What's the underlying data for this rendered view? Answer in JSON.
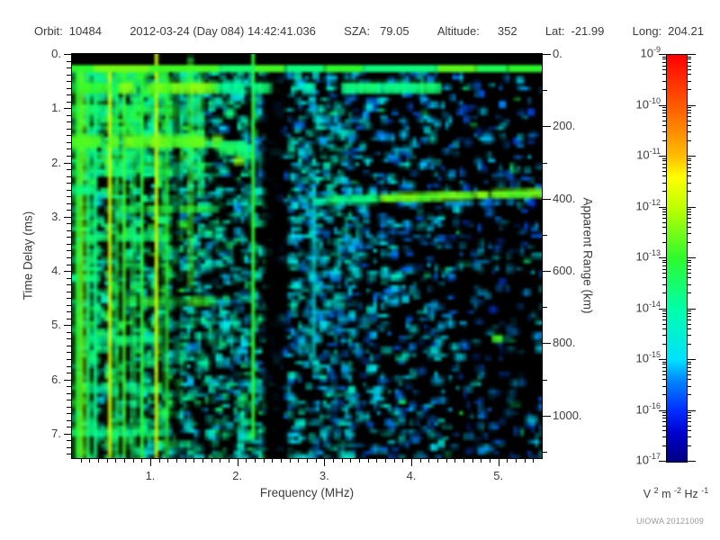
{
  "header": {
    "items": [
      {
        "label": "Orbit:",
        "value": "10484"
      },
      {
        "label": "",
        "value": "2012-03-24 (Day 084) 14:42:41.036"
      },
      {
        "label": "SZA:",
        "value": "79.05"
      },
      {
        "label": "Altitude:",
        "value": "352"
      },
      {
        "label": "Lat:",
        "value": "-21.99"
      },
      {
        "label": "Long:",
        "value": "204.21"
      }
    ]
  },
  "axes": {
    "x": {
      "title": "Frequency (MHz)",
      "tick_labels": [
        "1.",
        "2.",
        "3.",
        "4.",
        "5."
      ],
      "tick_values": [
        1,
        2,
        3,
        4,
        5
      ],
      "min": 0.1,
      "max": 5.5,
      "minor_step": 0.1
    },
    "y_left": {
      "title": "Time Delay (ms)",
      "tick_labels": [
        "0.",
        "1.",
        "2.",
        "3.",
        "4.",
        "5.",
        "6.",
        "7."
      ],
      "tick_values": [
        0,
        1,
        2,
        3,
        4,
        5,
        6,
        7
      ],
      "min": 0,
      "max": 7.45,
      "minor_step": 0.125
    },
    "y_right": {
      "title": "Apparent Range (km)",
      "tick_labels": [
        "0.",
        "200.",
        "400.",
        "600.",
        "800.",
        "1000."
      ],
      "tick_values": [
        0,
        200,
        400,
        600,
        800,
        1000
      ],
      "km_per_ms": 150,
      "minor_step": 100
    }
  },
  "colorbar": {
    "base": "10",
    "exponents": [
      "-9",
      "-10",
      "-11",
      "-12",
      "-13",
      "-14",
      "-15",
      "-16",
      "-17"
    ],
    "max_exp": -9,
    "min_exp": -17,
    "unit_parts": [
      {
        "b": "V",
        "e": "2"
      },
      {
        "b": "m",
        "e": "-2"
      },
      {
        "b": "Hz",
        "e": "-1"
      }
    ]
  },
  "footer": {
    "credit": "UIOWA 20121009"
  },
  "chart_data": {
    "type": "heatmap",
    "subtype": "radar-sounder-ionogram-spectrogram",
    "title": "",
    "xlabel": "Frequency (MHz)",
    "ylabel_left": "Time Delay (ms)",
    "ylabel_right": "Apparent Range (km)",
    "f_range": [
      0.1,
      5.5
    ],
    "t_range": [
      0,
      7.45
    ],
    "intensity_scale": {
      "unit": "V^2 m^-2 Hz^-1",
      "log_min": -17,
      "log_max": -9
    },
    "colormap_stops": [
      {
        "v": 0.0,
        "c": [
          0,
          0,
          130
        ]
      },
      {
        "v": 0.07,
        "c": [
          0,
          0,
          205
        ]
      },
      {
        "v": 0.125,
        "c": [
          0,
          45,
          255
        ]
      },
      {
        "v": 0.2,
        "c": [
          0,
          135,
          255
        ]
      },
      {
        "v": 0.25,
        "c": [
          0,
          225,
          255
        ]
      },
      {
        "v": 0.375,
        "c": [
          0,
          255,
          170
        ]
      },
      {
        "v": 0.5,
        "c": [
          45,
          250,
          45
        ]
      },
      {
        "v": 0.625,
        "c": [
          190,
          255,
          0
        ]
      },
      {
        "v": 0.7,
        "c": [
          255,
          255,
          0
        ]
      },
      {
        "v": 0.75,
        "c": [
          255,
          190,
          0
        ]
      },
      {
        "v": 0.875,
        "c": [
          255,
          90,
          0
        ]
      },
      {
        "v": 1.0,
        "c": [
          255,
          0,
          0
        ]
      }
    ],
    "noise_regions": [
      {
        "f": [
          0.1,
          1.32
        ],
        "t": [
          0.2,
          7.44
        ],
        "n": 1000,
        "v": [
          0.24,
          0.5
        ]
      },
      {
        "f": [
          0.1,
          1.55
        ],
        "t": [
          0.2,
          2.2
        ],
        "n": 550,
        "v": [
          0.3,
          0.55
        ]
      },
      {
        "f": [
          1.32,
          2.3
        ],
        "t": [
          0.2,
          7.44
        ],
        "n": 820,
        "v": [
          0.2,
          0.44
        ]
      },
      {
        "f": [
          2.3,
          2.55
        ],
        "t": [
          0.2,
          7.44
        ],
        "n": 50,
        "v": [
          0.15,
          0.28
        ]
      },
      {
        "f": [
          2.55,
          3.3
        ],
        "t": [
          0.2,
          7.44
        ],
        "n": 660,
        "v": [
          0.18,
          0.36
        ]
      },
      {
        "f": [
          3.3,
          4.4
        ],
        "t": [
          0.2,
          7.44
        ],
        "n": 520,
        "v": [
          0.16,
          0.32
        ]
      },
      {
        "f": [
          4.4,
          5.5
        ],
        "t": [
          0.2,
          7.44
        ],
        "n": 300,
        "v": [
          0.14,
          0.28
        ]
      },
      {
        "f": [
          3.3,
          5.5
        ],
        "t": [
          0.3,
          7.44
        ],
        "n": 30,
        "v": [
          0.38,
          0.48
        ]
      }
    ],
    "texture_bands": [
      {
        "t": [
          0.95,
          1.1
        ],
        "f": [
          0.1,
          1.3
        ],
        "v": 0.45
      },
      {
        "t": [
          2.1,
          2.25
        ],
        "f": [
          0.1,
          1.3
        ],
        "v": 0.4
      },
      {
        "t": [
          2.78,
          2.92
        ],
        "f": [
          0.64,
          1.67
        ],
        "v": 0.48
      },
      {
        "t": [
          3.3,
          3.45
        ],
        "f": [
          0.1,
          1.1
        ],
        "v": 0.42
      },
      {
        "t": [
          4.48,
          4.64
        ],
        "f": [
          0.72,
          1.67
        ],
        "v": 0.5
      },
      {
        "t": [
          5.2,
          5.36
        ],
        "f": [
          0.1,
          1.2
        ],
        "v": 0.4
      },
      {
        "t": [
          6.1,
          6.26
        ],
        "f": [
          0.1,
          1.0
        ],
        "v": 0.38
      },
      {
        "t": [
          6.9,
          7.05
        ],
        "f": [
          0.1,
          1.2
        ],
        "v": 0.4
      }
    ],
    "plasma_stripes": [
      {
        "f": 0.13,
        "w": 2,
        "v": 0.5,
        "t": [
          0.2,
          7.44
        ]
      },
      {
        "f": 0.2,
        "w": 1,
        "v": 0.58,
        "t": [
          0.2,
          7.44
        ]
      },
      {
        "f": 0.27,
        "w": 1,
        "v": 0.45,
        "t": [
          0.2,
          7.44
        ]
      },
      {
        "f": 0.35,
        "w": 1,
        "v": 0.42,
        "t": [
          0.2,
          7.44
        ]
      },
      {
        "f": 0.51,
        "w": 1,
        "v": 0.66,
        "t": [
          0.2,
          7.44
        ]
      },
      {
        "f": 0.58,
        "w": 1,
        "v": 0.48,
        "t": [
          0.2,
          7.44
        ]
      },
      {
        "f": 0.67,
        "w": 1,
        "v": 0.52,
        "t": [
          0.2,
          7.44
        ]
      },
      {
        "f": 0.78,
        "w": 1,
        "v": 0.46,
        "t": [
          0.2,
          7.44
        ]
      },
      {
        "f": 0.88,
        "w": 1,
        "v": 0.5,
        "t": [
          0.2,
          7.44
        ]
      },
      {
        "f": 1.05,
        "w": 1,
        "v": 0.65,
        "t": [
          0.0,
          7.44
        ]
      },
      {
        "f": 1.16,
        "w": 1,
        "v": 0.5,
        "t": [
          0.2,
          7.44
        ]
      },
      {
        "f": 1.44,
        "w": 1,
        "v": 0.52,
        "t": [
          0.05,
          4.3
        ]
      },
      {
        "f": 1.56,
        "w": 1,
        "v": 0.45,
        "t": [
          0.2,
          2.6
        ]
      },
      {
        "f": 2.16,
        "w": 1,
        "v": 0.5,
        "t": [
          0.0,
          7.1
        ]
      },
      {
        "f": 2.85,
        "w": 1,
        "v": 0.28,
        "t": [
          2.4,
          5.6
        ]
      }
    ],
    "dark_columns": [
      {
        "f": [
          2.3,
          2.52
        ],
        "t": [
          0.34,
          7.44
        ],
        "a": 0.85
      },
      {
        "f": [
          1.26,
          1.34
        ],
        "t": [
          0.34,
          7.44
        ],
        "a": 0.5
      },
      {
        "f": [
          4.62,
          4.78
        ],
        "t": [
          0.34,
          7.44
        ],
        "a": 0.3
      },
      {
        "f": [
          5.02,
          5.28
        ],
        "t": [
          2.9,
          7.44
        ],
        "a": 0.45
      },
      {
        "f": [
          4.03,
          4.16
        ],
        "t": [
          3.2,
          7.44
        ],
        "a": 0.3
      },
      {
        "f": [
          3.38,
          3.5
        ],
        "t": [
          4.0,
          7.44
        ],
        "a": 0.25
      }
    ],
    "top_black_band": {
      "t": [
        0,
        0.185
      ]
    },
    "surface_line": {
      "t": [
        0.2,
        0.33
      ],
      "segments": [
        [
          0.1,
          0.35,
          0.5
        ],
        [
          0.35,
          1.0,
          0.56
        ],
        [
          1.0,
          1.8,
          0.52
        ],
        [
          1.8,
          2.2,
          0.44
        ],
        [
          2.2,
          2.55,
          0.52
        ],
        [
          2.55,
          3.0,
          0.42
        ],
        [
          3.0,
          3.45,
          0.5
        ],
        [
          3.45,
          4.3,
          0.42
        ],
        [
          4.3,
          4.75,
          0.54
        ],
        [
          4.75,
          5.1,
          0.46
        ],
        [
          5.1,
          5.5,
          0.5
        ]
      ]
    },
    "echo_bands": [
      {
        "t": [
          0.52,
          0.72
        ],
        "dash": 0.25,
        "segs": [
          [
            0.1,
            0.65,
            0.5
          ],
          [
            0.65,
            1.75,
            0.56
          ],
          [
            1.75,
            2.28,
            0.4
          ],
          [
            2.55,
            2.8,
            0.35
          ],
          [
            3.2,
            4.25,
            0.42
          ]
        ]
      },
      {
        "t": [
          1.5,
          1.72
        ],
        "dash": 0.2,
        "segs": [
          [
            0.1,
            1.78,
            0.55
          ]
        ]
      },
      {
        "t": [
          1.62,
          1.84
        ],
        "dash": 0,
        "segs": [
          [
            1.78,
            2.08,
            0.45
          ]
        ]
      },
      {
        "t": [
          2.42,
          2.58
        ],
        "dash": 0.3,
        "segs": [
          [
            0.1,
            0.6,
            0.42
          ]
        ]
      }
    ],
    "ionospheric_trace": {
      "f": [
        3.05,
        5.5
      ],
      "t_start": 2.62,
      "slope_ms_per_mhz": -0.055,
      "thickness_ms": 0.14,
      "v_cyan": 0.42,
      "v_green": 0.55,
      "color_split_mhz": 3.65,
      "tail": {
        "f": [
          2.87,
          3.05
        ],
        "t": 2.64,
        "v": 0.36
      },
      "sub_trace": {
        "f": [
          3.9,
          5.15
        ],
        "dt": 0.17,
        "v": 0.22
      }
    },
    "bright_blobs": [
      {
        "f": 1.95,
        "t": 1.9,
        "v": 0.58,
        "w": 3,
        "h": 2
      },
      {
        "f": 4.93,
        "t": 5.18,
        "v": 0.52,
        "w": 3,
        "h": 2
      },
      {
        "f": 2.62,
        "t": 0.62,
        "v": 0.4,
        "w": 2,
        "h": 1
      },
      {
        "f": 3.05,
        "t": 1.05,
        "v": 0.4,
        "w": 2,
        "h": 1
      }
    ]
  }
}
